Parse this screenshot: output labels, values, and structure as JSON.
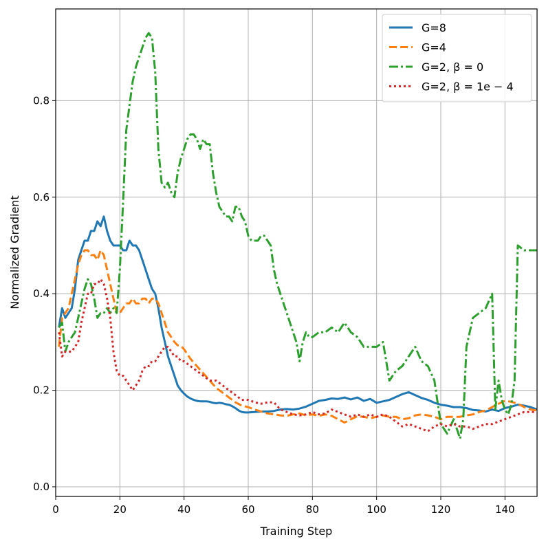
{
  "chart_data": {
    "type": "line",
    "title": "",
    "xlabel": "Training Step",
    "ylabel": "Normalized Gradient",
    "xlim": [
      0,
      150
    ],
    "ylim": [
      -0.02,
      0.99
    ],
    "xticks": [
      0,
      20,
      40,
      60,
      80,
      100,
      120,
      140
    ],
    "yticks": [
      0.0,
      0.2,
      0.4,
      0.6,
      0.8
    ],
    "grid": true,
    "legend_position": "top-right",
    "series": [
      {
        "name": "G=8",
        "color": "#1f77b4",
        "style": "solid",
        "x": [
          1,
          2,
          3,
          4,
          5,
          6,
          7,
          8,
          9,
          10,
          11,
          12,
          13,
          14,
          15,
          16,
          17,
          18,
          19,
          20,
          21,
          22,
          23,
          24,
          25,
          26,
          27,
          28,
          29,
          30,
          31,
          32,
          33,
          34,
          35,
          36,
          37,
          38,
          39,
          40,
          41,
          42,
          43,
          44,
          45,
          46,
          47,
          48,
          49,
          50,
          51,
          52,
          53,
          54,
          55,
          56,
          57,
          58,
          59,
          60,
          62,
          64,
          66,
          68,
          70,
          72,
          74,
          76,
          78,
          80,
          82,
          84,
          86,
          88,
          90,
          92,
          94,
          96,
          98,
          100,
          102,
          104,
          106,
          108,
          110,
          112,
          114,
          116,
          118,
          120,
          122,
          124,
          126,
          128,
          130,
          132,
          134,
          136,
          138,
          140,
          142,
          144,
          146,
          148,
          150
        ],
        "y": [
          0.33,
          0.37,
          0.35,
          0.36,
          0.37,
          0.41,
          0.47,
          0.49,
          0.51,
          0.51,
          0.53,
          0.53,
          0.55,
          0.54,
          0.56,
          0.53,
          0.51,
          0.5,
          0.5,
          0.5,
          0.49,
          0.49,
          0.51,
          0.5,
          0.5,
          0.49,
          0.47,
          0.45,
          0.43,
          0.41,
          0.4,
          0.37,
          0.33,
          0.3,
          0.27,
          0.25,
          0.23,
          0.21,
          0.2,
          0.193,
          0.187,
          0.183,
          0.18,
          0.178,
          0.177,
          0.177,
          0.177,
          0.176,
          0.174,
          0.173,
          0.174,
          0.173,
          0.171,
          0.17,
          0.167,
          0.163,
          0.158,
          0.155,
          0.154,
          0.154,
          0.155,
          0.156,
          0.156,
          0.157,
          0.16,
          0.161,
          0.16,
          0.162,
          0.166,
          0.172,
          0.178,
          0.18,
          0.183,
          0.182,
          0.185,
          0.181,
          0.185,
          0.178,
          0.182,
          0.174,
          0.177,
          0.18,
          0.186,
          0.192,
          0.196,
          0.19,
          0.184,
          0.18,
          0.174,
          0.17,
          0.168,
          0.165,
          0.165,
          0.163,
          0.159,
          0.158,
          0.156,
          0.16,
          0.157,
          0.163,
          0.166,
          0.17,
          0.168,
          0.165,
          0.16
        ]
      },
      {
        "name": "G=4",
        "color": "#ff7f0e",
        "style": "dashed",
        "x": [
          1,
          2,
          3,
          4,
          5,
          6,
          7,
          8,
          9,
          10,
          11,
          12,
          13,
          14,
          15,
          16,
          17,
          18,
          19,
          20,
          21,
          22,
          23,
          24,
          25,
          26,
          27,
          28,
          29,
          30,
          31,
          32,
          33,
          34,
          35,
          36,
          37,
          38,
          39,
          40,
          42,
          44,
          46,
          48,
          50,
          52,
          54,
          56,
          58,
          60,
          62,
          64,
          66,
          68,
          70,
          72,
          74,
          76,
          78,
          80,
          82,
          84,
          86,
          88,
          90,
          92,
          94,
          96,
          98,
          100,
          102,
          104,
          106,
          108,
          110,
          112,
          114,
          116,
          118,
          120,
          122,
          124,
          126,
          128,
          130,
          132,
          134,
          136,
          138,
          140,
          142,
          144,
          146,
          148,
          150
        ],
        "y": [
          0.29,
          0.35,
          0.36,
          0.37,
          0.4,
          0.43,
          0.46,
          0.48,
          0.49,
          0.49,
          0.48,
          0.48,
          0.47,
          0.49,
          0.48,
          0.45,
          0.42,
          0.39,
          0.36,
          0.36,
          0.37,
          0.38,
          0.38,
          0.39,
          0.38,
          0.38,
          0.39,
          0.39,
          0.38,
          0.39,
          0.39,
          0.38,
          0.36,
          0.34,
          0.32,
          0.31,
          0.3,
          0.293,
          0.292,
          0.285,
          0.265,
          0.25,
          0.235,
          0.22,
          0.205,
          0.195,
          0.185,
          0.175,
          0.168,
          0.165,
          0.16,
          0.156,
          0.152,
          0.15,
          0.148,
          0.147,
          0.15,
          0.152,
          0.148,
          0.15,
          0.147,
          0.15,
          0.147,
          0.14,
          0.133,
          0.14,
          0.146,
          0.145,
          0.142,
          0.145,
          0.148,
          0.145,
          0.145,
          0.14,
          0.142,
          0.148,
          0.15,
          0.148,
          0.145,
          0.14,
          0.145,
          0.145,
          0.145,
          0.148,
          0.15,
          0.155,
          0.158,
          0.165,
          0.172,
          0.178,
          0.176,
          0.172,
          0.165,
          0.16,
          0.158
        ]
      },
      {
        "name": "G=2, β = 0",
        "color": "#2ca02c",
        "style": "dashdot",
        "x": [
          1,
          2,
          3,
          4,
          5,
          6,
          7,
          8,
          9,
          10,
          11,
          12,
          13,
          14,
          15,
          16,
          17,
          18,
          19,
          20,
          21,
          22,
          23,
          24,
          25,
          26,
          27,
          28,
          29,
          30,
          31,
          32,
          33,
          34,
          35,
          36,
          37,
          38,
          39,
          40,
          41,
          42,
          43,
          44,
          45,
          46,
          47,
          48,
          49,
          50,
          51,
          52,
          53,
          54,
          55,
          56,
          57,
          58,
          59,
          60,
          61,
          62,
          63,
          64,
          65,
          66,
          67,
          68,
          69,
          70,
          71,
          72,
          73,
          74,
          75,
          76,
          77,
          78,
          79,
          80,
          82,
          84,
          86,
          88,
          90,
          92,
          94,
          96,
          98,
          100,
          102,
          104,
          106,
          108,
          110,
          112,
          114,
          116,
          118,
          120,
          122,
          124,
          126,
          127,
          128,
          129,
          130,
          132,
          134,
          136,
          137,
          138,
          139,
          140,
          141,
          142,
          143,
          144,
          146,
          148,
          150
        ],
        "y": [
          0.33,
          0.34,
          0.28,
          0.3,
          0.31,
          0.32,
          0.35,
          0.38,
          0.41,
          0.43,
          0.42,
          0.39,
          0.35,
          0.36,
          0.36,
          0.37,
          0.36,
          0.37,
          0.36,
          0.45,
          0.59,
          0.74,
          0.79,
          0.84,
          0.87,
          0.89,
          0.91,
          0.93,
          0.94,
          0.93,
          0.86,
          0.7,
          0.63,
          0.62,
          0.63,
          0.61,
          0.6,
          0.65,
          0.68,
          0.7,
          0.72,
          0.73,
          0.73,
          0.72,
          0.7,
          0.72,
          0.71,
          0.71,
          0.65,
          0.61,
          0.58,
          0.57,
          0.56,
          0.56,
          0.55,
          0.58,
          0.58,
          0.56,
          0.55,
          0.52,
          0.51,
          0.51,
          0.51,
          0.52,
          0.52,
          0.51,
          0.5,
          0.45,
          0.42,
          0.4,
          0.38,
          0.36,
          0.34,
          0.32,
          0.3,
          0.26,
          0.3,
          0.32,
          0.31,
          0.31,
          0.32,
          0.32,
          0.33,
          0.32,
          0.34,
          0.32,
          0.31,
          0.29,
          0.29,
          0.29,
          0.3,
          0.22,
          0.24,
          0.25,
          0.27,
          0.29,
          0.26,
          0.25,
          0.22,
          0.13,
          0.11,
          0.14,
          0.1,
          0.14,
          0.29,
          0.32,
          0.35,
          0.36,
          0.37,
          0.4,
          0.16,
          0.22,
          0.18,
          0.16,
          0.15,
          0.17,
          0.22,
          0.5,
          0.49,
          0.49,
          0.49
        ]
      },
      {
        "name": "G=2, β = 1e − 4",
        "color": "#d62728",
        "style": "dotted",
        "x": [
          1,
          2,
          3,
          4,
          5,
          6,
          7,
          8,
          9,
          10,
          11,
          12,
          13,
          14,
          15,
          16,
          17,
          18,
          19,
          20,
          21,
          22,
          23,
          24,
          25,
          26,
          27,
          28,
          29,
          30,
          31,
          32,
          33,
          34,
          35,
          36,
          37,
          38,
          39,
          40,
          42,
          44,
          46,
          48,
          50,
          52,
          54,
          56,
          58,
          60,
          62,
          64,
          66,
          68,
          70,
          72,
          74,
          76,
          78,
          80,
          82,
          84,
          86,
          88,
          90,
          92,
          94,
          96,
          98,
          100,
          102,
          104,
          106,
          108,
          110,
          112,
          114,
          116,
          118,
          120,
          122,
          124,
          126,
          128,
          130,
          132,
          134,
          136,
          138,
          140,
          142,
          144,
          146,
          148,
          150
        ],
        "y": [
          0.32,
          0.27,
          0.28,
          0.28,
          0.28,
          0.29,
          0.3,
          0.34,
          0.37,
          0.4,
          0.4,
          0.42,
          0.42,
          0.43,
          0.42,
          0.39,
          0.35,
          0.28,
          0.24,
          0.23,
          0.23,
          0.22,
          0.21,
          0.2,
          0.21,
          0.22,
          0.24,
          0.25,
          0.25,
          0.26,
          0.26,
          0.27,
          0.28,
          0.29,
          0.29,
          0.28,
          0.27,
          0.27,
          0.26,
          0.26,
          0.25,
          0.24,
          0.23,
          0.22,
          0.22,
          0.21,
          0.2,
          0.19,
          0.18,
          0.18,
          0.175,
          0.172,
          0.175,
          0.175,
          0.16,
          0.155,
          0.15,
          0.148,
          0.15,
          0.155,
          0.15,
          0.152,
          0.16,
          0.155,
          0.15,
          0.145,
          0.15,
          0.145,
          0.15,
          0.145,
          0.15,
          0.145,
          0.135,
          0.125,
          0.13,
          0.125,
          0.12,
          0.115,
          0.125,
          0.13,
          0.125,
          0.13,
          0.125,
          0.125,
          0.12,
          0.125,
          0.13,
          0.13,
          0.135,
          0.14,
          0.145,
          0.15,
          0.155,
          0.155,
          0.155
        ]
      }
    ]
  }
}
